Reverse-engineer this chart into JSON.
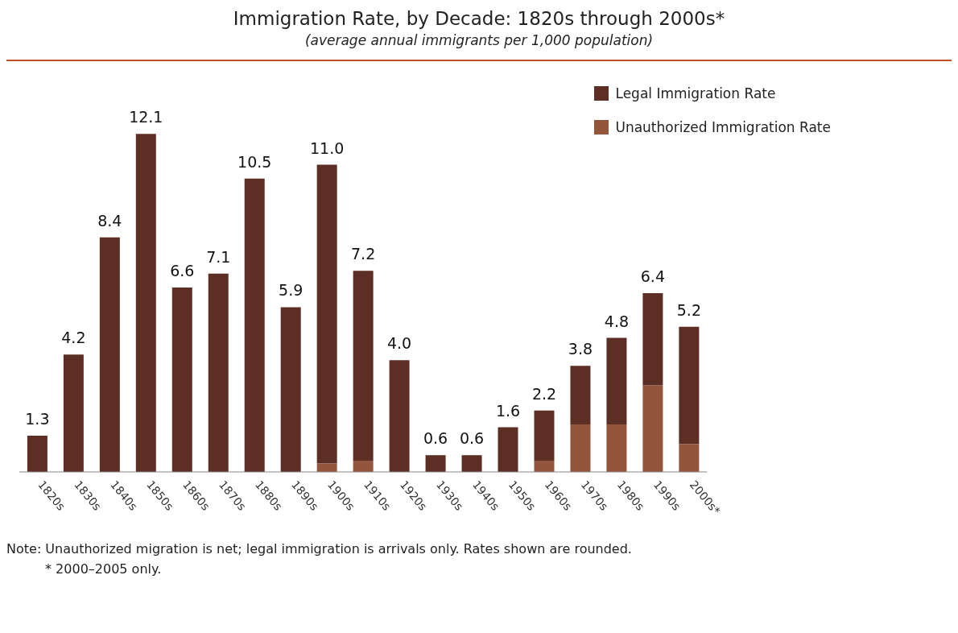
{
  "chart_data": {
    "type": "bar",
    "title": "Immigration Rate, by Decade: 1820s through 2000s*",
    "subtitle": "(average annual immigrants per 1,000 population)",
    "categories": [
      "1820s",
      "1830s",
      "1840s",
      "1850s",
      "1860s",
      "1870s",
      "1880s",
      "1890s",
      "1900s",
      "1910s",
      "1920s",
      "1930s",
      "1940s",
      "1950s",
      "1960s",
      "1970s",
      "1980s",
      "1990s",
      "2000s*"
    ],
    "stacked": true,
    "series": [
      {
        "name": "Unauthorized Immigration Rate",
        "color": "#94553d",
        "values": [
          null,
          null,
          null,
          null,
          null,
          null,
          null,
          null,
          0.3,
          0.4,
          null,
          null,
          null,
          null,
          0.4,
          1.7,
          1.7,
          3.1,
          1.0
        ]
      },
      {
        "name": "Legal Immigration Rate",
        "color": "#5c2e24",
        "values": [
          1.3,
          4.2,
          8.4,
          12.1,
          6.6,
          7.1,
          10.5,
          5.9,
          10.7,
          6.8,
          4.0,
          0.6,
          0.6,
          1.6,
          1.8,
          2.1,
          3.1,
          3.3,
          4.2
        ],
        "value_labels": [
          "1.3",
          "4.2",
          "8.4",
          "12.1",
          "6.6",
          "7.1",
          "10.5",
          "5.9",
          null,
          null,
          "4.0",
          "0.6",
          "0.6",
          "1.6",
          null,
          null,
          null,
          null,
          null
        ]
      }
    ],
    "totals": [
      null,
      null,
      null,
      null,
      null,
      null,
      null,
      null,
      "11.0",
      "7.2",
      null,
      null,
      null,
      null,
      "2.2",
      "3.8",
      "4.8",
      "6.4",
      "5.2"
    ],
    "legend": "top right",
    "grid": false,
    "annotations": [
      "Note: Unauthorized migration is net; legal immigration is arrivals only.  Rates shown are rounded.",
      "* 2000–2005 only."
    ]
  }
}
